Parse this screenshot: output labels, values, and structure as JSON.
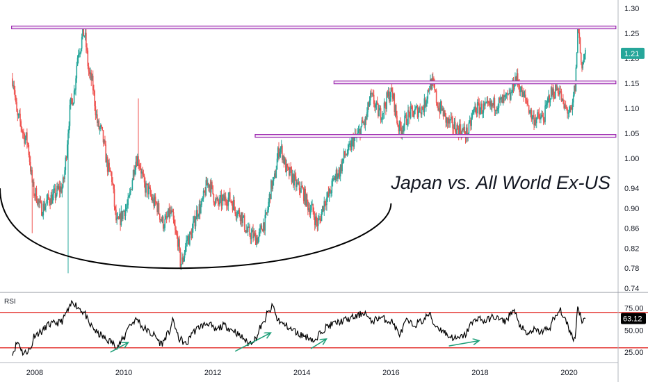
{
  "colors": {
    "up": "#26a69a",
    "down": "#ef5350",
    "resistance": "#9c27b0",
    "arc": "#000000",
    "rsi_line": "#000000",
    "rsi_levels": "#e53935",
    "arrows": "#1b9e77",
    "price_badge": "#26a69a",
    "rsi_badge": "#000000"
  },
  "chart_data": [
    {
      "type": "candlestick",
      "title": "Japan vs. All World Ex-US",
      "x_tick_labels": [
        "2008",
        "2010",
        "2012",
        "2014",
        "2016",
        "2018",
        "2020"
      ],
      "x_ticks": [
        2008,
        2010,
        2012,
        2014,
        2016,
        2018,
        2020
      ],
      "xlim": [
        2007.22,
        2021.1
      ],
      "y_tick_labels": [
        "1.30",
        "1.25",
        "1.20",
        "1.15",
        "1.10",
        "1.05",
        "1.00",
        "0.94",
        "0.90",
        "0.86",
        "0.82",
        "0.78",
        "0.74"
      ],
      "ylim": [
        0.733,
        1.31
      ],
      "last_value": "1.21",
      "series_anchors": [
        [
          2007.5,
          1.16
        ],
        [
          2007.62,
          1.08
        ],
        [
          2007.8,
          1.04
        ],
        [
          2008.0,
          0.93
        ],
        [
          2008.15,
          0.9
        ],
        [
          2008.35,
          0.92
        ],
        [
          2008.6,
          0.94
        ],
        [
          2008.85,
          1.12
        ],
        [
          2009.0,
          1.22
        ],
        [
          2009.1,
          1.25
        ],
        [
          2009.25,
          1.16
        ],
        [
          2009.45,
          1.06
        ],
        [
          2009.7,
          0.97
        ],
        [
          2009.85,
          0.87
        ],
        [
          2010.05,
          0.9
        ],
        [
          2010.3,
          1.0
        ],
        [
          2010.5,
          0.94
        ],
        [
          2010.7,
          0.91
        ],
        [
          2010.9,
          0.87
        ],
        [
          2011.05,
          0.89
        ],
        [
          2011.2,
          0.84
        ],
        [
          2011.28,
          0.79
        ],
        [
          2011.45,
          0.84
        ],
        [
          2011.7,
          0.9
        ],
        [
          2011.9,
          0.95
        ],
        [
          2012.1,
          0.91
        ],
        [
          2012.35,
          0.92
        ],
        [
          2012.6,
          0.89
        ],
        [
          2012.8,
          0.85
        ],
        [
          2013.0,
          0.84
        ],
        [
          2013.15,
          0.87
        ],
        [
          2013.35,
          0.95
        ],
        [
          2013.5,
          1.02
        ],
        [
          2013.7,
          0.97
        ],
        [
          2013.95,
          0.94
        ],
        [
          2014.2,
          0.9
        ],
        [
          2014.35,
          0.87
        ],
        [
          2014.55,
          0.92
        ],
        [
          2014.8,
          0.97
        ],
        [
          2015.0,
          1.01
        ],
        [
          2015.2,
          1.04
        ],
        [
          2015.4,
          1.07
        ],
        [
          2015.55,
          1.12
        ],
        [
          2015.75,
          1.09
        ],
        [
          2016.0,
          1.13
        ],
        [
          2016.2,
          1.06
        ],
        [
          2016.45,
          1.09
        ],
        [
          2016.7,
          1.1
        ],
        [
          2016.9,
          1.15
        ],
        [
          2017.1,
          1.1
        ],
        [
          2017.3,
          1.07
        ],
        [
          2017.5,
          1.06
        ],
        [
          2017.7,
          1.05
        ],
        [
          2017.9,
          1.1
        ],
        [
          2018.15,
          1.1
        ],
        [
          2018.4,
          1.11
        ],
        [
          2018.65,
          1.12
        ],
        [
          2018.8,
          1.16
        ],
        [
          2019.0,
          1.12
        ],
        [
          2019.2,
          1.08
        ],
        [
          2019.4,
          1.08
        ],
        [
          2019.6,
          1.13
        ],
        [
          2019.75,
          1.14
        ],
        [
          2019.9,
          1.1
        ],
        [
          2020.05,
          1.09
        ],
        [
          2020.13,
          1.14
        ],
        [
          2020.2,
          1.26
        ],
        [
          2020.28,
          1.19
        ],
        [
          2020.38,
          1.21
        ]
      ],
      "spikes": [
        {
          "x": 2008.75,
          "low": 0.77
        },
        {
          "x": 2010.33,
          "high": 1.12
        },
        {
          "x": 2007.95,
          "low": 0.85
        },
        {
          "x": 2020.2,
          "high": 1.26
        }
      ],
      "resistance_levels": [
        {
          "value": 1.262,
          "x_start": 2007.48,
          "x_end": 2021.05
        },
        {
          "value": 1.152,
          "x_start": 2014.72,
          "x_end": 2021.05
        },
        {
          "value": 1.045,
          "x_start": 2012.95,
          "x_end": 2021.05
        }
      ],
      "rounding_bottom": {
        "left": [
          2007.22,
          0.94
        ],
        "bottom": [
          2011.2,
          0.78
        ],
        "right": [
          2016.0,
          0.91
        ]
      }
    },
    {
      "type": "line",
      "label": "RSI",
      "y_tick_labels": [
        "75.00",
        "50.00",
        "25.00"
      ],
      "y_ticks": [
        75,
        50,
        25
      ],
      "ylim": [
        14,
        92
      ],
      "reference_levels": [
        70,
        30
      ],
      "last_value": "63.12",
      "series_anchors": [
        [
          2007.5,
          25
        ],
        [
          2007.62,
          36
        ],
        [
          2007.75,
          24
        ],
        [
          2007.9,
          28
        ],
        [
          2008.0,
          45
        ],
        [
          2008.15,
          48
        ],
        [
          2008.3,
          56
        ],
        [
          2008.5,
          58
        ],
        [
          2008.6,
          60
        ],
        [
          2008.75,
          72
        ],
        [
          2008.85,
          82
        ],
        [
          2009.0,
          75
        ],
        [
          2009.1,
          70
        ],
        [
          2009.25,
          55
        ],
        [
          2009.45,
          45
        ],
        [
          2009.65,
          38
        ],
        [
          2009.85,
          32
        ],
        [
          2010.0,
          40
        ],
        [
          2010.1,
          55
        ],
        [
          2010.3,
          62
        ],
        [
          2010.45,
          52
        ],
        [
          2010.65,
          45
        ],
        [
          2010.85,
          35
        ],
        [
          2011.0,
          46
        ],
        [
          2011.1,
          60
        ],
        [
          2011.25,
          40
        ],
        [
          2011.4,
          34
        ],
        [
          2011.55,
          48
        ],
        [
          2011.75,
          55
        ],
        [
          2011.9,
          58
        ],
        [
          2012.05,
          50
        ],
        [
          2012.25,
          55
        ],
        [
          2012.45,
          50
        ],
        [
          2012.65,
          42
        ],
        [
          2012.8,
          35
        ],
        [
          2012.95,
          40
        ],
        [
          2013.1,
          55
        ],
        [
          2013.25,
          70
        ],
        [
          2013.35,
          77
        ],
        [
          2013.45,
          62
        ],
        [
          2013.6,
          56
        ],
        [
          2013.8,
          50
        ],
        [
          2013.95,
          45
        ],
        [
          2014.15,
          42
        ],
        [
          2014.3,
          37
        ],
        [
          2014.45,
          50
        ],
        [
          2014.6,
          55
        ],
        [
          2014.75,
          58
        ],
        [
          2014.9,
          60
        ],
        [
          2015.0,
          62
        ],
        [
          2015.2,
          65
        ],
        [
          2015.4,
          70
        ],
        [
          2015.55,
          60
        ],
        [
          2015.75,
          64
        ],
        [
          2016.0,
          60
        ],
        [
          2016.2,
          46
        ],
        [
          2016.35,
          60
        ],
        [
          2016.5,
          56
        ],
        [
          2016.7,
          60
        ],
        [
          2016.85,
          68
        ],
        [
          2017.0,
          55
        ],
        [
          2017.15,
          50
        ],
        [
          2017.3,
          43
        ],
        [
          2017.5,
          40
        ],
        [
          2017.65,
          44
        ],
        [
          2017.8,
          57
        ],
        [
          2017.95,
          64
        ],
        [
          2018.1,
          60
        ],
        [
          2018.3,
          65
        ],
        [
          2018.55,
          60
        ],
        [
          2018.75,
          72
        ],
        [
          2018.9,
          55
        ],
        [
          2019.05,
          45
        ],
        [
          2019.2,
          50
        ],
        [
          2019.35,
          48
        ],
        [
          2019.55,
          52
        ],
        [
          2019.65,
          62
        ],
        [
          2019.8,
          72
        ],
        [
          2019.95,
          58
        ],
        [
          2020.05,
          45
        ],
        [
          2020.12,
          40
        ],
        [
          2020.2,
          76
        ],
        [
          2020.25,
          68
        ],
        [
          2020.3,
          60
        ],
        [
          2020.38,
          63
        ]
      ],
      "divergence_arrows": [
        {
          "from": [
            2009.7,
            25
          ],
          "to": [
            2010.1,
            36
          ]
        },
        {
          "from": [
            2012.5,
            26
          ],
          "to": [
            2013.3,
            47
          ]
        },
        {
          "from": [
            2014.2,
            29
          ],
          "to": [
            2014.55,
            40
          ]
        },
        {
          "from": [
            2017.3,
            32
          ],
          "to": [
            2017.98,
            38
          ]
        }
      ]
    }
  ]
}
